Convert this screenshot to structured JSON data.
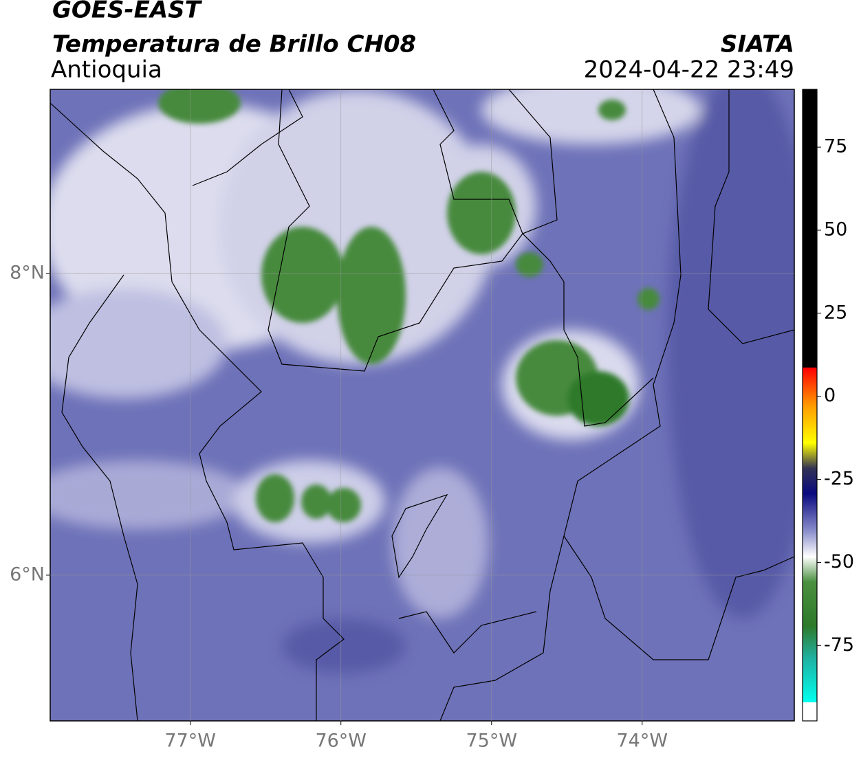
{
  "header": {
    "title": "GOES-EAST",
    "subtitle": "Temperatura de Brillo CH08",
    "region": "Antioquia",
    "source": "SIATA",
    "timestamp": "2024-04-22 23:49"
  },
  "map": {
    "xlim": [
      -77.93,
      -72.99
    ],
    "ylim": [
      5.034,
      9.22
    ],
    "xticks": [
      {
        "value": -77,
        "label": "77°W"
      },
      {
        "value": -76,
        "label": "76°W"
      },
      {
        "value": -75,
        "label": "75°W"
      },
      {
        "value": -74,
        "label": "74°W"
      }
    ],
    "yticks": [
      {
        "value": 8,
        "label": "8°N"
      },
      {
        "value": 6,
        "label": "6°N"
      }
    ],
    "grid": true
  },
  "colorbar": {
    "lim": [
      -97.7,
      92.4
    ],
    "ticks": [
      75,
      50,
      25,
      0,
      -25,
      -50,
      -75
    ]
  }
}
